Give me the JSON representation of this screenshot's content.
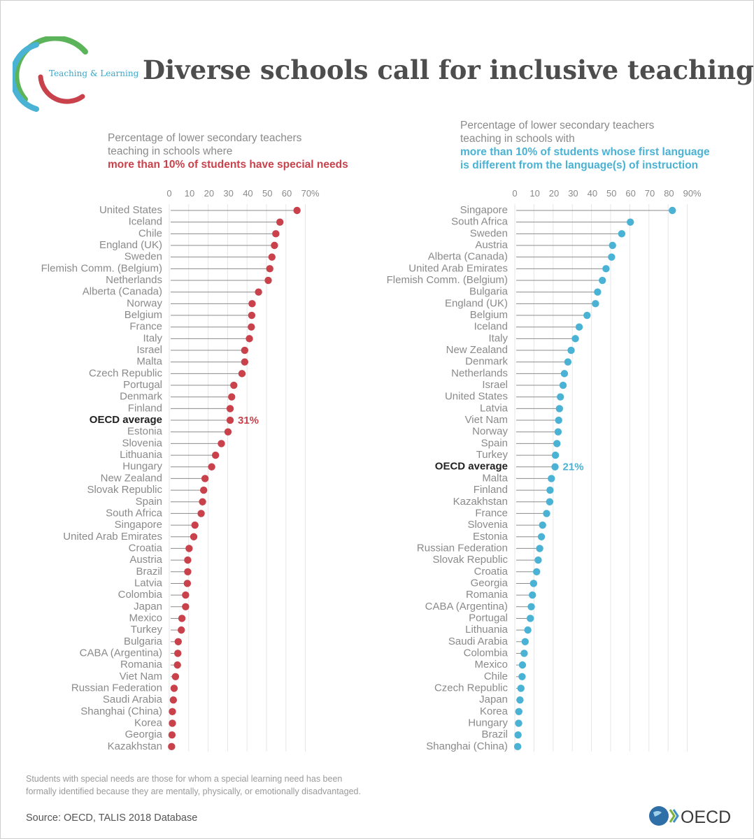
{
  "header": {
    "logo_text": "Teaching & Learning",
    "title": "Diverse schools call for inclusive teaching"
  },
  "left_subtitle": {
    "line1": "Percentage of lower secondary teachers",
    "line2": "teaching in schools where",
    "line3": "more than 10% of students have special needs"
  },
  "right_subtitle": {
    "line1": "Percentage of lower secondary teachers",
    "line2": "teaching in schools with",
    "line3": "more than 10% of students whose first language",
    "line4": "is different from the language(s) of instruction"
  },
  "footer": {
    "note_line1": "Students with special needs are those for whom a special learning need has been",
    "note_line2": "formally identified because they are mentally, physically, or emotionally disadvantaged.",
    "source": "Source: OECD, TALIS 2018 Database",
    "brand": "OECD"
  },
  "colors": {
    "left_accent": "#c8414b",
    "right_accent": "#4ab2d4",
    "gridline": "#e6e6e6",
    "stem": "#8c8c8c",
    "label": "#8a8a8a"
  },
  "chart_data": [
    {
      "type": "lollipop",
      "ticks": [
        "0",
        "10",
        "20",
        "30",
        "40",
        "50",
        "60",
        "70%"
      ],
      "xlim": [
        0,
        70
      ],
      "highlight": "OECD average",
      "highlight_label": "31%",
      "categories": [
        "United States",
        "Iceland",
        "Chile",
        "England (UK)",
        "Sweden",
        "Flemish Comm. (Belgium)",
        "Netherlands",
        "Alberta (Canada)",
        "Norway",
        "Belgium",
        "France",
        "Italy",
        "Israel",
        "Malta",
        "Czech Republic",
        "Portugal",
        "Denmark",
        "Finland",
        "OECD average",
        "Estonia",
        "Slovenia",
        "Lithuania",
        "Hungary",
        "New Zealand",
        "Slovak Republic",
        "Spain",
        "South Africa",
        "Singapore",
        "United Arab Emirates",
        "Croatia",
        "Austria",
        "Brazil",
        "Latvia",
        "Colombia",
        "Japan",
        "Mexico",
        "Turkey",
        "Bulgaria",
        "CABA (Argentina)",
        "Romania",
        "Viet Nam",
        "Russian Federation",
        "Saudi Arabia",
        "Shanghai (China)",
        "Korea",
        "Georgia",
        "Kazakhstan"
      ],
      "values": [
        65.7,
        56.9,
        54.8,
        54.1,
        52.8,
        51.7,
        50.9,
        45.9,
        42.6,
        42.4,
        42.2,
        41.2,
        38.8,
        38.8,
        37.4,
        33.2,
        32.1,
        31.3,
        31.3,
        30.2,
        26.8,
        23.8,
        21.8,
        18.4,
        17.7,
        17.1,
        16.4,
        13.2,
        12.6,
        10.2,
        9.5,
        9.5,
        9.3,
        8.4,
        8.4,
        6.5,
        6.2,
        4.6,
        4.4,
        4.2,
        3.2,
        2.5,
        2.1,
        1.6,
        1.6,
        1.4,
        1.2
      ]
    },
    {
      "type": "lollipop",
      "ticks": [
        "0",
        "10",
        "20",
        "30",
        "40",
        "50",
        "60",
        "70",
        "80",
        "90%"
      ],
      "xlim": [
        0,
        90
      ],
      "highlight": "OECD average",
      "highlight_label": "21%",
      "categories": [
        "Singapore",
        "South Africa",
        "Sweden",
        "Austria",
        "Alberta (Canada)",
        "United Arab Emirates",
        "Flemish Comm. (Belgium)",
        "Bulgaria",
        "England (UK)",
        "Belgium",
        "Iceland",
        "Italy",
        "New Zealand",
        "Denmark",
        "Netherlands",
        "Israel",
        "United States",
        "Latvia",
        "Viet Nam",
        "Norway",
        "Spain",
        "Turkey",
        "OECD average",
        "Malta",
        "Finland",
        "Kazakhstan",
        "France",
        "Slovenia",
        "Estonia",
        "Russian Federation",
        "Slovak Republic",
        "Croatia",
        "Georgia",
        "Romania",
        "CABA (Argentina)",
        "Portugal",
        "Lithuania",
        "Saudi Arabia",
        "Colombia",
        "Mexico",
        "Chile",
        "Czech Republic",
        "Japan",
        "Korea",
        "Hungary",
        "Brazil",
        "Shanghai (China)"
      ],
      "values": [
        82.2,
        60.3,
        55.8,
        51.0,
        50.5,
        47.6,
        45.7,
        43.2,
        42.1,
        37.7,
        33.6,
        31.6,
        29.4,
        27.7,
        25.9,
        25.2,
        23.8,
        23.3,
        22.9,
        22.6,
        22.0,
        21.2,
        21.0,
        19.1,
        18.4,
        18.2,
        16.6,
        14.5,
        13.9,
        13.0,
        12.2,
        11.4,
        9.8,
        9.2,
        8.6,
        8.1,
        6.8,
        5.4,
        4.9,
        4.0,
        3.8,
        3.2,
        2.7,
        2.1,
        2.0,
        1.7,
        1.5
      ]
    }
  ]
}
